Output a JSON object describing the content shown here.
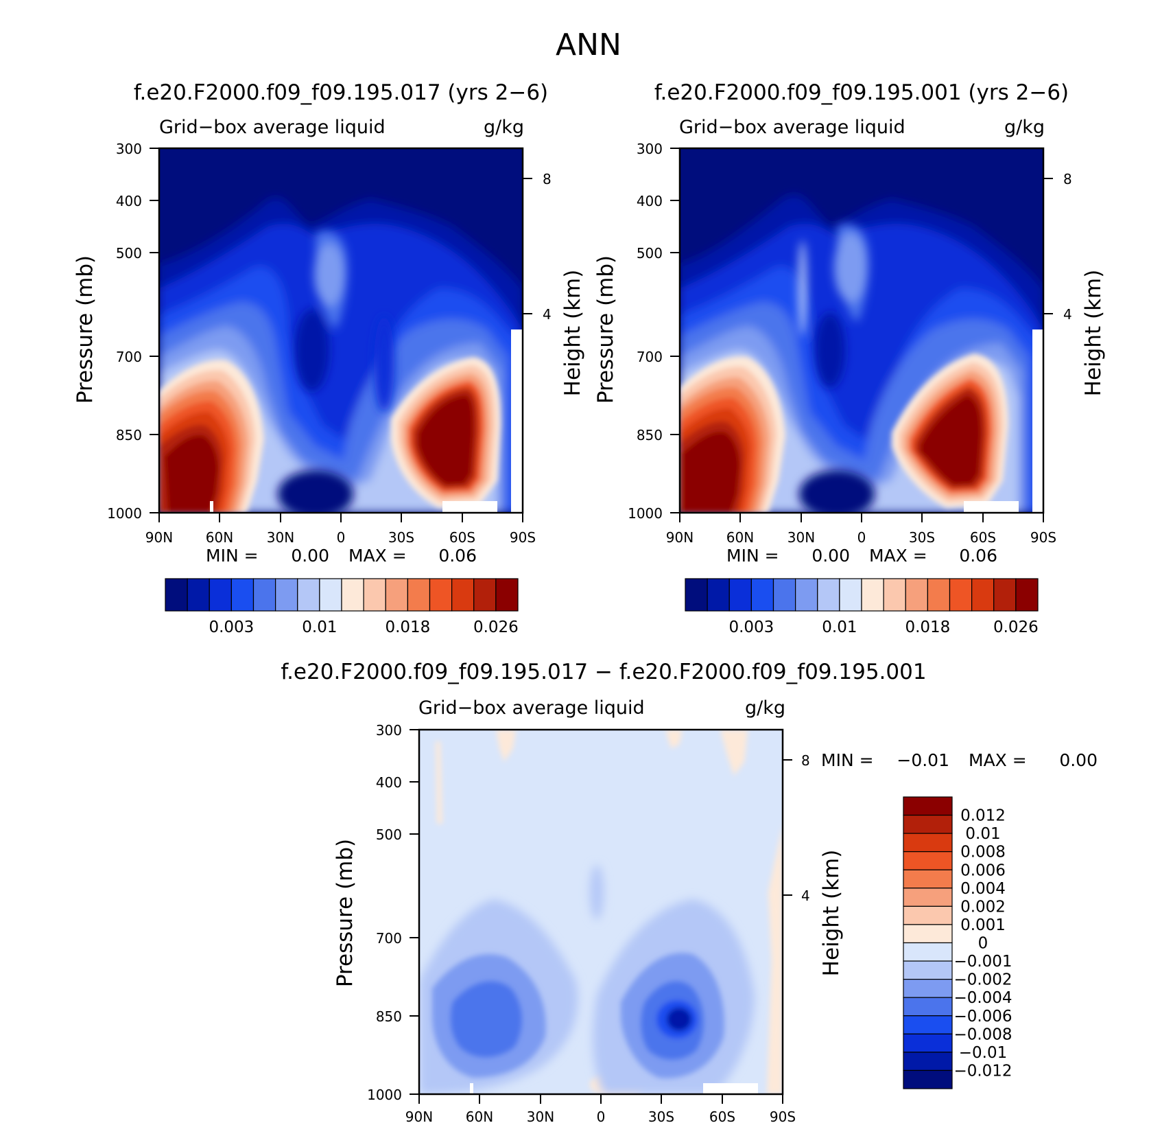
{
  "chart_data": [
    {
      "type": "heatmap",
      "panel": "top-left",
      "figure_title": "ANN",
      "title": "f.e20.F2000.f09_f09.195.017 (yrs 2−6)",
      "left_label": "Grid−box average liquid",
      "right_label": "g/kg",
      "ylabel": "Pressure (mb)",
      "y2label": "Height (km)",
      "x_ticks": [
        "90N",
        "60N",
        "30N",
        "0",
        "30S",
        "60S",
        "90S"
      ],
      "y_ticks": [
        "300",
        "400",
        "500",
        "700",
        "850",
        "1000"
      ],
      "y2_ticks": [
        "8",
        "4"
      ],
      "min_label": "MIN =",
      "min_value": "0.00",
      "max_label": "MAX =",
      "max_value": "0.06",
      "ylim": [
        1000,
        300
      ],
      "colorbar": {
        "levels": [
          "0.003",
          "0.01",
          "0.018",
          "0.026"
        ],
        "colors": [
          "#000d7d",
          "#0019a8",
          "#0a2fd9",
          "#1a4ef0",
          "#4b74ec",
          "#7d9bf1",
          "#b4c7f7",
          "#d9e6fb",
          "#fde9d9",
          "#fbc8ae",
          "#f6a07c",
          "#f37c4c",
          "#ee5525",
          "#d93a10",
          "#b2200a",
          "#8b0000"
        ]
      },
      "features": [
        {
          "lat": 68,
          "p": 920,
          "value": 0.06,
          "desc": "NH low cloud max"
        },
        {
          "lat": -50,
          "p": 880,
          "value": 0.06,
          "desc": "SH low cloud max"
        },
        {
          "lat": 0,
          "p": 600,
          "value": 0.008,
          "desc": "tropical mid-level"
        }
      ]
    },
    {
      "type": "heatmap",
      "panel": "top-right",
      "title": "f.e20.F2000.f09_f09.195.001 (yrs 2−6)",
      "left_label": "Grid−box average liquid",
      "right_label": "g/kg",
      "ylabel": "Pressure (mb)",
      "y2label": "Height (km)",
      "x_ticks": [
        "90N",
        "60N",
        "30N",
        "0",
        "30S",
        "60S",
        "90S"
      ],
      "y_ticks": [
        "300",
        "400",
        "500",
        "700",
        "850",
        "1000"
      ],
      "y2_ticks": [
        "8",
        "4"
      ],
      "min_label": "MIN =",
      "min_value": "0.00",
      "max_label": "MAX =",
      "max_value": "0.06",
      "ylim": [
        1000,
        300
      ],
      "colorbar": {
        "levels": [
          "0.003",
          "0.01",
          "0.018",
          "0.026"
        ],
        "colors": [
          "#000d7d",
          "#0019a8",
          "#0a2fd9",
          "#1a4ef0",
          "#4b74ec",
          "#7d9bf1",
          "#b4c7f7",
          "#d9e6fb",
          "#fde9d9",
          "#fbc8ae",
          "#f6a07c",
          "#f37c4c",
          "#ee5525",
          "#d93a10",
          "#b2200a",
          "#8b0000"
        ]
      },
      "features": [
        {
          "lat": 68,
          "p": 900,
          "value": 0.06,
          "desc": "NH low cloud max"
        },
        {
          "lat": -50,
          "p": 880,
          "value": 0.06,
          "desc": "SH low cloud max"
        },
        {
          "lat": 0,
          "p": 560,
          "value": 0.008,
          "desc": "tropical mid-level"
        }
      ]
    },
    {
      "type": "heatmap",
      "panel": "bottom",
      "title": "f.e20.F2000.f09_f09.195.017 − f.e20.F2000.f09_f09.195.001",
      "left_label": "Grid−box average liquid",
      "right_label": "g/kg",
      "ylabel": "Pressure (mb)",
      "y2label": "Height (km)",
      "x_ticks": [
        "90N",
        "60N",
        "30N",
        "0",
        "30S",
        "60S",
        "90S"
      ],
      "y_ticks": [
        "300",
        "400",
        "500",
        "700",
        "850",
        "1000"
      ],
      "y2_ticks": [
        "8",
        "4"
      ],
      "min_label": "MIN =",
      "min_value": "−0.01",
      "max_label": "MAX =",
      "max_value": "0.00",
      "ylim": [
        1000,
        300
      ],
      "colorbar": {
        "levels": [
          "0.012",
          "0.01",
          "0.008",
          "0.006",
          "0.004",
          "0.002",
          "0.001",
          "0",
          "−0.001",
          "−0.002",
          "−0.004",
          "−0.006",
          "−0.008",
          "−0.01",
          "−0.012"
        ],
        "colors": [
          "#8b0000",
          "#b2200a",
          "#d93a10",
          "#ee5525",
          "#f37c4c",
          "#f6a07c",
          "#fbc8ae",
          "#fde9d9",
          "#d9e6fb",
          "#b4c7f7",
          "#7d9bf1",
          "#4b74ec",
          "#1a4ef0",
          "#0a2fd9",
          "#0019a8",
          "#000d7d"
        ]
      },
      "features": [
        {
          "lat": 62,
          "p": 850,
          "value": -0.006,
          "desc": "NH negative"
        },
        {
          "lat": -40,
          "p": 860,
          "value": -0.012,
          "desc": "SH negative"
        }
      ]
    }
  ]
}
